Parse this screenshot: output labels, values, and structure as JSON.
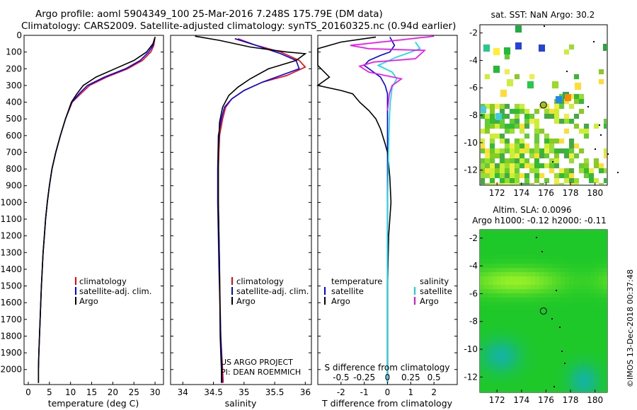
{
  "header": {
    "line1": "Argo profile: aoml 5904349_100 25-Mar-2016 7.248S 175.79E (DM data)",
    "line2": "Climatology: CARS2009. Satellite-adjusted climatology: synTS_20160325.nc (0.94d earlier)"
  },
  "colors": {
    "climatology": "#ff0000",
    "satellite": "#0000ff",
    "argo": "#000000",
    "satellite_salinity": "#00e0e0",
    "argo_salinity": "#ff00ff"
  },
  "chart_data": [
    {
      "id": "temperature",
      "type": "line",
      "xlabel": "temperature (deg C)",
      "ylabel": "",
      "xlim": [
        -1,
        32
      ],
      "ylim": [
        2090,
        0
      ],
      "xticks": [
        "0",
        "5",
        "10",
        "15",
        "20",
        "25",
        "30"
      ],
      "yticks": [
        "0",
        "100",
        "200",
        "300",
        "400",
        "500",
        "600",
        "700",
        "800",
        "900",
        "1000",
        "1100",
        "1200",
        "1300",
        "1400",
        "1500",
        "1600",
        "1700",
        "1800",
        "1900",
        "2000"
      ],
      "legend": [
        "climatology",
        "satellite-adj. clim.",
        "Argo"
      ],
      "series": [
        {
          "name": "climatology",
          "color": "#ff0000",
          "points": [
            [
              30,
              10
            ],
            [
              29.7,
              60
            ],
            [
              29,
              100
            ],
            [
              27,
              150
            ],
            [
              23.5,
              200
            ],
            [
              18.5,
              250
            ],
            [
              14.5,
              300
            ],
            [
              12.4,
              350
            ],
            [
              10.4,
              400
            ],
            [
              8.8,
              500
            ],
            [
              7.6,
              600
            ],
            [
              6.5,
              700
            ],
            [
              5.6,
              800
            ],
            [
              5,
              900
            ],
            [
              4.5,
              1000
            ],
            [
              4.1,
              1100
            ],
            [
              3.8,
              1200
            ],
            [
              3.5,
              1300
            ],
            [
              3.3,
              1400
            ],
            [
              3.1,
              1500
            ],
            [
              2.95,
              1600
            ],
            [
              2.8,
              1700
            ],
            [
              2.65,
              1800
            ],
            [
              2.5,
              1900
            ],
            [
              2.4,
              2000
            ],
            [
              2.4,
              2080
            ]
          ]
        },
        {
          "name": "satellite-adj. clim.",
          "color": "#0000ff",
          "points": [
            [
              30,
              10
            ],
            [
              29.5,
              60
            ],
            [
              28.5,
              100
            ],
            [
              26.5,
              150
            ],
            [
              23,
              200
            ],
            [
              18,
              250
            ],
            [
              14,
              300
            ],
            [
              12,
              350
            ],
            [
              10.3,
              400
            ],
            [
              8.8,
              500
            ],
            [
              7.6,
              600
            ],
            [
              6.5,
              700
            ],
            [
              5.6,
              800
            ],
            [
              5,
              900
            ],
            [
              4.5,
              1000
            ],
            [
              4.1,
              1100
            ],
            [
              3.8,
              1200
            ],
            [
              3.5,
              1300
            ],
            [
              3.3,
              1400
            ],
            [
              3.1,
              1500
            ],
            [
              2.95,
              1600
            ],
            [
              2.8,
              1700
            ],
            [
              2.65,
              1800
            ],
            [
              2.5,
              1900
            ],
            [
              2.4,
              2000
            ],
            [
              2.4,
              2080
            ]
          ]
        },
        {
          "name": "Argo",
          "color": "#000000",
          "points": [
            [
              30,
              10
            ],
            [
              29.5,
              50
            ],
            [
              28,
              100
            ],
            [
              25,
              150
            ],
            [
              20.5,
              200
            ],
            [
              16,
              250
            ],
            [
              13,
              300
            ],
            [
              11.5,
              350
            ],
            [
              10.2,
              400
            ],
            [
              8.8,
              500
            ],
            [
              7.6,
              600
            ],
            [
              6.5,
              700
            ],
            [
              5.6,
              800
            ],
            [
              5,
              900
            ],
            [
              4.5,
              1000
            ],
            [
              4.1,
              1100
            ],
            [
              3.8,
              1200
            ],
            [
              3.5,
              1300
            ],
            [
              3.3,
              1400
            ],
            [
              3.1,
              1500
            ],
            [
              2.95,
              1600
            ],
            [
              2.8,
              1700
            ],
            [
              2.65,
              1800
            ],
            [
              2.5,
              1900
            ],
            [
              2.4,
              2000
            ],
            [
              2.4,
              2080
            ]
          ]
        }
      ]
    },
    {
      "id": "salinity",
      "type": "line",
      "xlabel": "salinity",
      "xlim": [
        33.8,
        36.1
      ],
      "ylim": [
        2090,
        0
      ],
      "xticks": [
        "34",
        "34.5",
        "35",
        "35.5",
        "36"
      ],
      "legend": [
        "climatology",
        "satellite-adj. clim.",
        "Argo"
      ],
      "annotations": [
        "US ARGO PROJECT",
        "PI: DEAN ROEMMICH"
      ],
      "series": [
        {
          "name": "climatology",
          "color": "#ff0000",
          "points": [
            [
              34.9,
              20
            ],
            [
              35.2,
              60
            ],
            [
              35.6,
              100
            ],
            [
              35.9,
              150
            ],
            [
              36.0,
              190
            ],
            [
              35.7,
              240
            ],
            [
              35.3,
              280
            ],
            [
              35.0,
              330
            ],
            [
              34.8,
              380
            ],
            [
              34.7,
              430
            ],
            [
              34.65,
              500
            ],
            [
              34.6,
              600
            ],
            [
              34.58,
              800
            ],
            [
              34.58,
              1000
            ],
            [
              34.6,
              1400
            ],
            [
              34.62,
              1800
            ],
            [
              34.65,
              2000
            ],
            [
              34.66,
              2080
            ]
          ]
        },
        {
          "name": "satellite-adj. clim.",
          "color": "#0000ff",
          "points": [
            [
              34.85,
              20
            ],
            [
              35.2,
              60
            ],
            [
              35.6,
              110
            ],
            [
              35.85,
              150
            ],
            [
              35.9,
              200
            ],
            [
              35.6,
              240
            ],
            [
              35.3,
              280
            ],
            [
              35.0,
              330
            ],
            [
              34.8,
              380
            ],
            [
              34.68,
              430
            ],
            [
              34.63,
              500
            ],
            [
              34.58,
              600
            ],
            [
              34.57,
              800
            ],
            [
              34.57,
              1000
            ],
            [
              34.59,
              1400
            ],
            [
              34.62,
              1800
            ],
            [
              34.64,
              2000
            ],
            [
              34.64,
              2080
            ]
          ]
        },
        {
          "name": "Argo",
          "color": "#000000",
          "points": [
            [
              34.2,
              5
            ],
            [
              34.6,
              30
            ],
            [
              35.1,
              70
            ],
            [
              35.7,
              100
            ],
            [
              36.0,
              110
            ],
            [
              35.85,
              150
            ],
            [
              35.4,
              200
            ],
            [
              35.1,
              260
            ],
            [
              34.9,
              310
            ],
            [
              34.75,
              360
            ],
            [
              34.65,
              430
            ],
            [
              34.6,
              520
            ],
            [
              34.58,
              700
            ],
            [
              34.58,
              1000
            ],
            [
              34.6,
              1400
            ],
            [
              34.61,
              1800
            ],
            [
              34.63,
              2000
            ],
            [
              34.63,
              2080
            ]
          ]
        }
      ]
    },
    {
      "id": "difference",
      "type": "line",
      "xlabel": "T difference from climatology",
      "xlabel_top": "S difference from climatology",
      "xlim": [
        -3,
        3
      ],
      "s_xlim": [
        -0.75,
        0.75
      ],
      "ylim": [
        2090,
        0
      ],
      "xticks": [
        "-2",
        "-1",
        "0",
        "1",
        "2"
      ],
      "s_xticks": [
        "-0.5",
        "-0.25",
        "0",
        "0.25",
        "0.5"
      ],
      "legend_temperature": [
        "temperature",
        "satellite",
        "Argo"
      ],
      "legend_salinity": [
        "salinity",
        "satellite",
        "Argo"
      ],
      "series": [
        {
          "name": "T satellite",
          "axis": "T",
          "color": "#0000ff",
          "points": [
            [
              0.1,
              10
            ],
            [
              0.3,
              60
            ],
            [
              0.1,
              100
            ],
            [
              -0.3,
              120
            ],
            [
              -0.8,
              150
            ],
            [
              -1.0,
              180
            ],
            [
              -0.7,
              210
            ],
            [
              -0.3,
              250
            ],
            [
              -0.1,
              300
            ],
            [
              0,
              350
            ],
            [
              0,
              500
            ],
            [
              0,
              1000
            ],
            [
              0,
              2080
            ]
          ]
        },
        {
          "name": "T Argo",
          "axis": "T",
          "color": "#000000",
          "points": [
            [
              -0.5,
              10
            ],
            [
              -2.0,
              40
            ],
            [
              -3.0,
              80
            ],
            [
              -3.0,
              180
            ],
            [
              -2.5,
              250
            ],
            [
              -3.0,
              300
            ],
            [
              -2.0,
              330
            ],
            [
              -1.5,
              350
            ],
            [
              -1.2,
              400
            ],
            [
              -0.8,
              450
            ],
            [
              -0.5,
              500
            ],
            [
              -0.3,
              560
            ],
            [
              -0.1,
              650
            ],
            [
              0,
              700
            ],
            [
              0.1,
              850
            ],
            [
              0.15,
              1000
            ],
            [
              0.05,
              1200
            ],
            [
              0,
              1500
            ],
            [
              0,
              1800
            ],
            [
              0,
              2080
            ]
          ]
        },
        {
          "name": "S satellite",
          "axis": "S",
          "color": "#00e0e0",
          "points": [
            [
              0.3,
              40
            ],
            [
              0.35,
              80
            ],
            [
              0.1,
              130
            ],
            [
              -0.1,
              180
            ],
            [
              0.05,
              220
            ],
            [
              0.1,
              260
            ],
            [
              0.05,
              310
            ],
            [
              0.03,
              400
            ],
            [
              0.02,
              500
            ],
            [
              0.01,
              700
            ],
            [
              0,
              1000
            ],
            [
              0,
              2080
            ]
          ]
        },
        {
          "name": "S Argo",
          "axis": "S",
          "color": "#ff00ff",
          "points": [
            [
              0.5,
              5
            ],
            [
              0.1,
              30
            ],
            [
              -0.4,
              60
            ],
            [
              -0.2,
              80
            ],
            [
              0.4,
              90
            ],
            [
              0.3,
              140
            ],
            [
              -0.15,
              160
            ],
            [
              -0.3,
              185
            ],
            [
              -0.2,
              220
            ],
            [
              0.15,
              260
            ],
            [
              0.05,
              300
            ],
            [
              0.02,
              350
            ],
            [
              0.01,
              400
            ],
            [
              0,
              450
            ]
          ]
        }
      ]
    }
  ],
  "sst_map": {
    "title": "sat. SST: NaN Argo: 30.2",
    "xticks": [
      "172",
      "174",
      "176",
      "178",
      "180"
    ],
    "yticks": [
      "-2",
      "-4",
      "-6",
      "-8",
      "-10",
      "-12"
    ],
    "xlim": [
      170.6,
      181.0
    ],
    "ylim": [
      -13.1,
      -1.4
    ],
    "marker": [
      175.79,
      -7.248
    ]
  },
  "sla_map": {
    "title1": "Altim. SLA: 0.0096",
    "title2": "Argo h1000: -0.12 h2000: -0.11",
    "xticks": [
      "172",
      "174",
      "176",
      "178",
      "180"
    ],
    "yticks": [
      "-2",
      "-4",
      "-6",
      "-8",
      "-10",
      "-12"
    ],
    "xlim": [
      170.6,
      181.0
    ],
    "ylim": [
      -13.1,
      -1.4
    ],
    "marker": [
      175.79,
      -7.248
    ]
  },
  "footer": {
    "stamp": "©IMOS 13-Dec-2018 00:37:48"
  }
}
